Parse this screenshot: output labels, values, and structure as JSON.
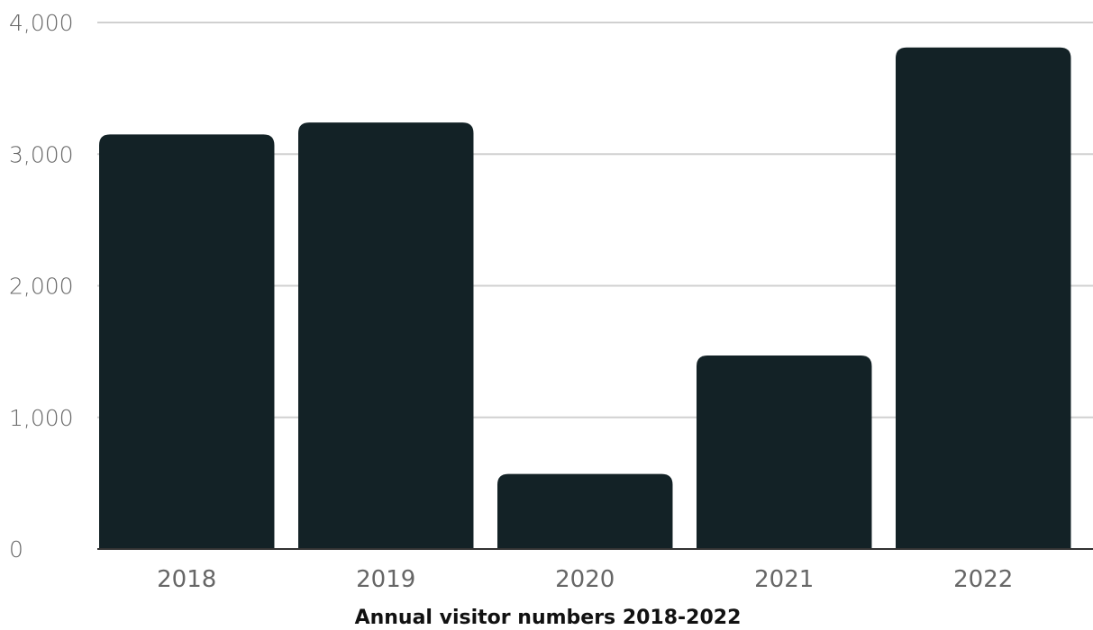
{
  "chart_data": {
    "type": "bar",
    "title": "",
    "xlabel": "Annual visitor numbers 2018-2022",
    "ylabel": "",
    "categories": [
      "2018",
      "2019",
      "2020",
      "2021",
      "2022"
    ],
    "values": [
      3150,
      3240,
      570,
      1470,
      3810
    ],
    "ylim": [
      0,
      4000
    ],
    "yticks": [
      0,
      1000,
      2000,
      3000,
      4000
    ],
    "ytick_labels": [
      "0",
      "1,000",
      "2,000",
      "3,000",
      "4,000"
    ],
    "grid": true,
    "legend": "none",
    "bar_color": "#132226"
  }
}
